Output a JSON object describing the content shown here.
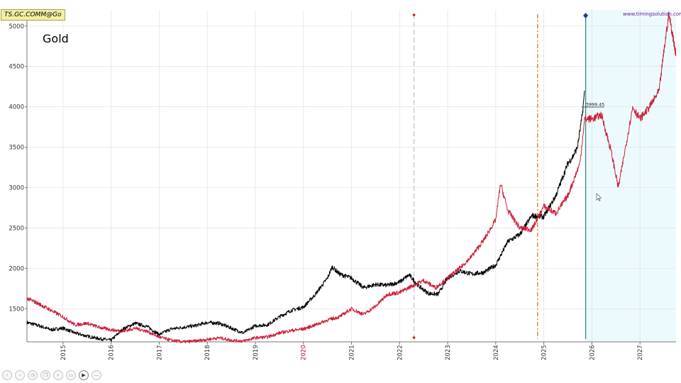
{
  "ticker": "TS.GC.COMM@Go",
  "title": "Gold",
  "watermark": "www.timingsolution.com",
  "marker_label": "3999.45",
  "toolbar": {
    "icons": [
      "back-icon",
      "forward-icon",
      "clock-icon",
      "copy-icon",
      "zoom-icon",
      "window-icon",
      "video-icon",
      "minus-icon"
    ],
    "glyphs": [
      "‹",
      "›",
      "◷",
      "❐",
      "⌕",
      "▭",
      "▶",
      "—"
    ]
  },
  "colors": {
    "price": "#000000",
    "projection": "#cc1f3a",
    "grid": "#dddddd",
    "forecast_zone": "#ecfafd",
    "forecast_line": "#2e8b8b",
    "line_2022": "#c8c8c8",
    "line_2025": "#e07a10",
    "marker": "#1f3a8a"
  },
  "chart_data": {
    "type": "line",
    "title": "Gold",
    "xlabel": "",
    "ylabel": "",
    "xlim": [
      2014.25,
      2027.75
    ],
    "ylim": [
      1090,
      5200
    ],
    "y_ticks": [
      1500,
      2000,
      2500,
      3000,
      3500,
      4000,
      4500,
      5000
    ],
    "x_ticks": [
      "2015",
      "2016",
      "2017",
      "2018",
      "2019",
      "2020",
      "2021",
      "2022",
      "2023",
      "2024",
      "2025",
      "2026",
      "2027"
    ],
    "x_tick_positions": [
      2015,
      2016,
      2017,
      2018,
      2019,
      2020,
      2021,
      2022,
      2023,
      2024,
      2025,
      2026,
      2027
    ],
    "highlighted_x_tick": "2020",
    "grid": true,
    "vertical_lines": [
      {
        "x": 2022.3,
        "style": "dashed",
        "color": "#c8c8c8"
      },
      {
        "x": 2024.87,
        "style": "dash-dot",
        "color": "#e07a10"
      },
      {
        "x": 2025.87,
        "style": "solid",
        "color": "#2e8b8b"
      }
    ],
    "forecast_zone": [
      2025.87,
      2027.75
    ],
    "series": [
      {
        "color": "#000000",
        "x": [
          2014.25,
          2014.5,
          2014.75,
          2015.0,
          2015.25,
          2015.5,
          2015.75,
          2016.0,
          2016.25,
          2016.5,
          2016.75,
          2017.0,
          2017.25,
          2017.5,
          2017.75,
          2018.0,
          2018.25,
          2018.5,
          2018.75,
          2019.0,
          2019.25,
          2019.5,
          2019.75,
          2020.0,
          2020.25,
          2020.5,
          2020.6,
          2020.75,
          2021.0,
          2021.25,
          2021.5,
          2021.75,
          2022.0,
          2022.2,
          2022.4,
          2022.6,
          2022.8,
          2023.0,
          2023.25,
          2023.5,
          2023.75,
          2024.0,
          2024.25,
          2024.5,
          2024.75,
          2025.0,
          2025.25,
          2025.5,
          2025.6,
          2025.7,
          2025.8,
          2025.85
        ],
        "values": [
          1330,
          1290,
          1240,
          1260,
          1200,
          1160,
          1130,
          1110,
          1250,
          1320,
          1280,
          1180,
          1250,
          1270,
          1290,
          1330,
          1320,
          1260,
          1200,
          1290,
          1300,
          1400,
          1480,
          1520,
          1680,
          1880,
          2020,
          1930,
          1880,
          1760,
          1800,
          1790,
          1830,
          1920,
          1780,
          1690,
          1680,
          1880,
          1970,
          1930,
          1950,
          2040,
          2330,
          2420,
          2650,
          2640,
          2900,
          3300,
          3380,
          3500,
          3900,
          4200
        ]
      },
      {
        "color": "#cc1f3a",
        "x": [
          2014.25,
          2014.5,
          2014.75,
          2015.0,
          2015.25,
          2015.5,
          2015.75,
          2016.0,
          2016.25,
          2016.5,
          2016.75,
          2017.0,
          2017.25,
          2017.5,
          2017.75,
          2018.0,
          2018.25,
          2018.5,
          2018.75,
          2019.0,
          2019.25,
          2019.5,
          2019.75,
          2020.0,
          2020.25,
          2020.5,
          2020.75,
          2021.0,
          2021.25,
          2021.5,
          2021.75,
          2022.0,
          2022.25,
          2022.5,
          2022.75,
          2023.0,
          2023.25,
          2023.5,
          2023.75,
          2024.0,
          2024.1,
          2024.25,
          2024.5,
          2024.75,
          2025.0,
          2025.25,
          2025.5,
          2025.75,
          2025.85,
          2026.0,
          2026.2,
          2026.4,
          2026.55,
          2026.7,
          2026.85,
          2027.0,
          2027.2,
          2027.4,
          2027.5,
          2027.6,
          2027.75
        ],
        "values": [
          1630,
          1560,
          1480,
          1400,
          1300,
          1320,
          1270,
          1240,
          1220,
          1260,
          1220,
          1150,
          1110,
          1090,
          1100,
          1120,
          1140,
          1110,
          1100,
          1140,
          1150,
          1200,
          1230,
          1250,
          1300,
          1360,
          1400,
          1500,
          1430,
          1530,
          1680,
          1700,
          1780,
          1850,
          1760,
          1880,
          2000,
          2150,
          2350,
          2600,
          3050,
          2720,
          2500,
          2480,
          2770,
          2680,
          2900,
          3300,
          3850,
          3850,
          3900,
          3450,
          3000,
          3500,
          4000,
          3850,
          4000,
          4200,
          4700,
          5150,
          4650
        ]
      }
    ]
  }
}
